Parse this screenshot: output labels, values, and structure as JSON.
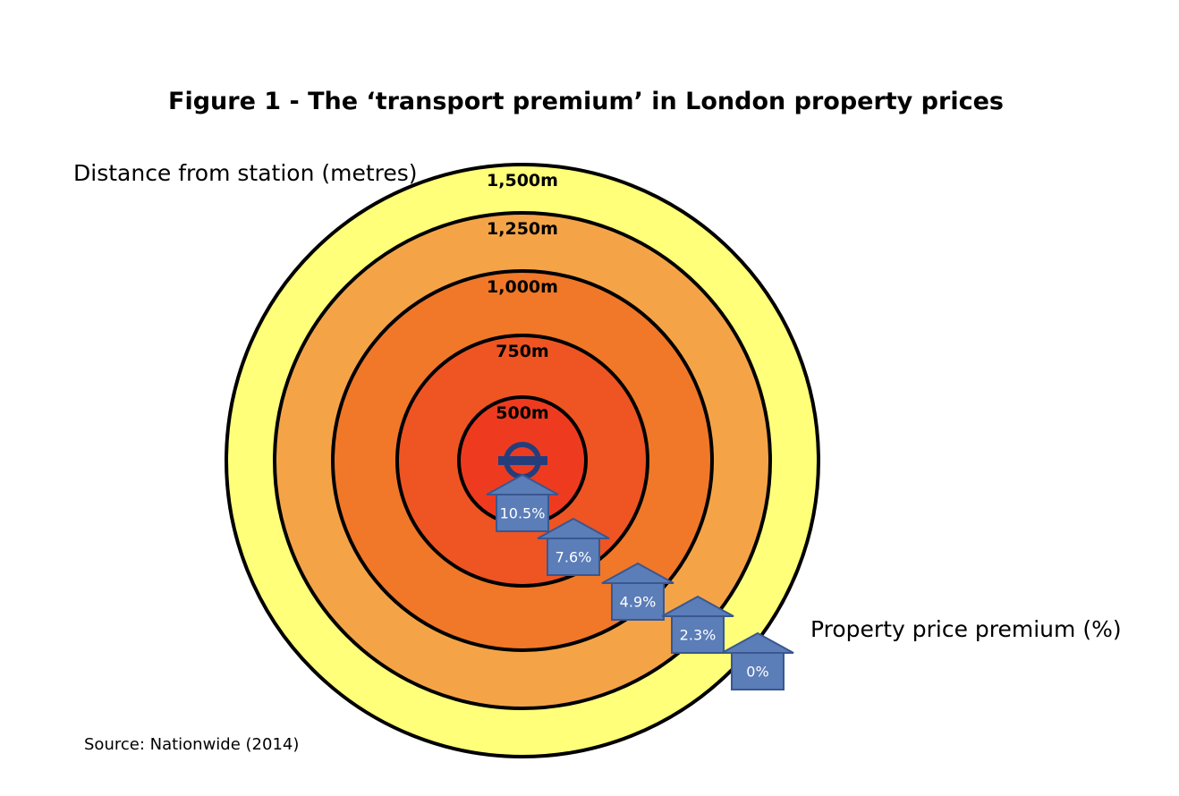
{
  "title": "Figure 1 - The ‘transport premium’ in London property prices",
  "distance_label": "Distance from station (metres)",
  "premium_label": "Property price premium (%)",
  "source": "Source: Nationwide (2014)",
  "chart_data": {
    "type": "concentric-rings",
    "rings": [
      {
        "label": "1,500m",
        "distance_m": 1500,
        "color": "#FFFF7A"
      },
      {
        "label": "1,250m",
        "distance_m": 1250,
        "color": "#F4A447"
      },
      {
        "label": "1,000m",
        "distance_m": 1000,
        "color": "#F07828"
      },
      {
        "label": "750m",
        "distance_m": 750,
        "color": "#EE5522"
      },
      {
        "label": "500m",
        "distance_m": 500,
        "color": "#EE3B1F"
      }
    ],
    "premiums": [
      {
        "label": "10.5%",
        "value": 10.5
      },
      {
        "label": "7.6%",
        "value": 7.6
      },
      {
        "label": "4.9%",
        "value": 4.9
      },
      {
        "label": "2.3%",
        "value": 2.3
      },
      {
        "label": "0%",
        "value": 0
      }
    ],
    "icon_color": "#5B7DB8",
    "icon_border": "#3A5790",
    "station_icon": "underground-roundel-icon"
  }
}
